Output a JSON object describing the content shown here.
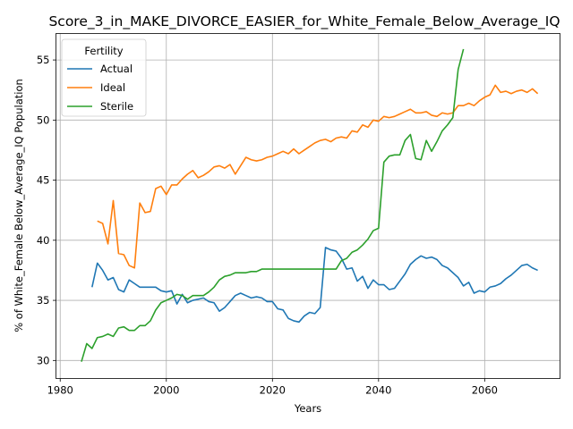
{
  "chart_data": {
    "type": "line",
    "title": "Score_3_in_MAKE_DIVORCE_EASIER_for_White_Female_Below_Average_IQ",
    "xlabel": "Years",
    "ylabel": "% of White_Female Below_Average_IQ Population",
    "xlim": [
      1979.2,
      1974.2
    ],
    "ylim": [
      28.5,
      57.2
    ],
    "x_ticks": [
      1980,
      2000,
      2020,
      2040,
      2060
    ],
    "y_ticks": [
      30,
      35,
      40,
      45,
      50,
      55
    ],
    "grid": true,
    "legend": {
      "title": "Fertility",
      "placement": "top-left"
    },
    "series": [
      {
        "name": "Actual",
        "color": "#1f77b4",
        "points": [
          [
            1986,
            36.1
          ],
          [
            1987,
            38.1
          ],
          [
            1988,
            37.5
          ],
          [
            1989,
            36.7
          ],
          [
            1990,
            36.9
          ],
          [
            1991,
            35.9
          ],
          [
            1992,
            35.7
          ],
          [
            1993,
            36.7
          ],
          [
            1994,
            36.4
          ],
          [
            1995,
            36.1
          ],
          [
            1996,
            36.1
          ],
          [
            1997,
            36.1
          ],
          [
            1998,
            36.1
          ],
          [
            1999,
            35.8
          ],
          [
            2000,
            35.7
          ],
          [
            2001,
            35.8
          ],
          [
            2002,
            34.7
          ],
          [
            2003,
            35.5
          ],
          [
            2004,
            34.8
          ],
          [
            2005,
            35.0
          ],
          [
            2006,
            35.1
          ],
          [
            2007,
            35.2
          ],
          [
            2008,
            34.9
          ],
          [
            2009,
            34.8
          ],
          [
            2010,
            34.1
          ],
          [
            2011,
            34.4
          ],
          [
            2012,
            34.9
          ],
          [
            2013,
            35.4
          ],
          [
            2014,
            35.6
          ],
          [
            2015,
            35.4
          ],
          [
            2016,
            35.2
          ],
          [
            2017,
            35.3
          ],
          [
            2018,
            35.2
          ],
          [
            2019,
            34.9
          ],
          [
            2020,
            34.9
          ],
          [
            2021,
            34.3
          ],
          [
            2022,
            34.2
          ],
          [
            2023,
            33.5
          ],
          [
            2024,
            33.3
          ],
          [
            2025,
            33.2
          ],
          [
            2026,
            33.7
          ],
          [
            2027,
            34.0
          ],
          [
            2028,
            33.9
          ],
          [
            2029,
            34.4
          ],
          [
            2030,
            39.4
          ],
          [
            2031,
            39.2
          ],
          [
            2032,
            39.1
          ],
          [
            2033,
            38.5
          ],
          [
            2034,
            37.6
          ],
          [
            2035,
            37.7
          ],
          [
            2036,
            36.6
          ],
          [
            2037,
            37.0
          ],
          [
            2038,
            36.0
          ],
          [
            2039,
            36.7
          ],
          [
            2040,
            36.3
          ],
          [
            2041,
            36.3
          ],
          [
            2042,
            35.9
          ],
          [
            2043,
            36.0
          ],
          [
            2044,
            36.6
          ],
          [
            2045,
            37.2
          ],
          [
            2046,
            38.0
          ],
          [
            2047,
            38.4
          ],
          [
            2048,
            38.7
          ],
          [
            2049,
            38.5
          ],
          [
            2050,
            38.6
          ],
          [
            2051,
            38.4
          ],
          [
            2052,
            37.9
          ],
          [
            2053,
            37.7
          ],
          [
            2054,
            37.3
          ],
          [
            2055,
            36.9
          ],
          [
            2056,
            36.2
          ],
          [
            2057,
            36.5
          ],
          [
            2058,
            35.6
          ],
          [
            2059,
            35.8
          ],
          [
            2060,
            35.7
          ],
          [
            2061,
            36.1
          ],
          [
            2062,
            36.2
          ],
          [
            2063,
            36.4
          ],
          [
            2064,
            36.8
          ],
          [
            2065,
            37.1
          ],
          [
            2066,
            37.5
          ],
          [
            2067,
            37.9
          ],
          [
            2068,
            38.0
          ],
          [
            2069,
            37.7
          ],
          [
            2070,
            37.5
          ]
        ]
      },
      {
        "name": "Ideal",
        "color": "#ff7f0e",
        "points": [
          [
            1987,
            41.6
          ],
          [
            1988,
            41.4
          ],
          [
            1989,
            39.7
          ],
          [
            1990,
            43.3
          ],
          [
            1991,
            38.9
          ],
          [
            1992,
            38.8
          ],
          [
            1993,
            37.9
          ],
          [
            1994,
            37.7
          ],
          [
            1995,
            43.1
          ],
          [
            1996,
            42.3
          ],
          [
            1997,
            42.4
          ],
          [
            1998,
            44.3
          ],
          [
            1999,
            44.5
          ],
          [
            2000,
            43.8
          ],
          [
            2001,
            44.6
          ],
          [
            2002,
            44.6
          ],
          [
            2003,
            45.1
          ],
          [
            2004,
            45.5
          ],
          [
            2005,
            45.8
          ],
          [
            2006,
            45.2
          ],
          [
            2007,
            45.4
          ],
          [
            2008,
            45.7
          ],
          [
            2009,
            46.1
          ],
          [
            2010,
            46.2
          ],
          [
            2011,
            46.0
          ],
          [
            2012,
            46.3
          ],
          [
            2013,
            45.5
          ],
          [
            2014,
            46.2
          ],
          [
            2015,
            46.9
          ],
          [
            2016,
            46.7
          ],
          [
            2017,
            46.6
          ],
          [
            2018,
            46.7
          ],
          [
            2019,
            46.9
          ],
          [
            2020,
            47.0
          ],
          [
            2021,
            47.2
          ],
          [
            2022,
            47.4
          ],
          [
            2023,
            47.2
          ],
          [
            2024,
            47.6
          ],
          [
            2025,
            47.2
          ],
          [
            2026,
            47.5
          ],
          [
            2027,
            47.8
          ],
          [
            2028,
            48.1
          ],
          [
            2029,
            48.3
          ],
          [
            2030,
            48.4
          ],
          [
            2031,
            48.2
          ],
          [
            2032,
            48.5
          ],
          [
            2033,
            48.6
          ],
          [
            2034,
            48.5
          ],
          [
            2035,
            49.1
          ],
          [
            2036,
            49.0
          ],
          [
            2037,
            49.6
          ],
          [
            2038,
            49.4
          ],
          [
            2039,
            50.0
          ],
          [
            2040,
            49.9
          ],
          [
            2041,
            50.3
          ],
          [
            2042,
            50.2
          ],
          [
            2043,
            50.3
          ],
          [
            2044,
            50.5
          ],
          [
            2045,
            50.7
          ],
          [
            2046,
            50.9
          ],
          [
            2047,
            50.6
          ],
          [
            2048,
            50.6
          ],
          [
            2049,
            50.7
          ],
          [
            2050,
            50.4
          ],
          [
            2051,
            50.3
          ],
          [
            2052,
            50.6
          ],
          [
            2053,
            50.5
          ],
          [
            2054,
            50.6
          ],
          [
            2055,
            51.2
          ],
          [
            2056,
            51.2
          ],
          [
            2057,
            51.4
          ],
          [
            2058,
            51.2
          ],
          [
            2059,
            51.6
          ],
          [
            2060,
            51.9
          ],
          [
            2061,
            52.1
          ],
          [
            2062,
            52.9
          ],
          [
            2063,
            52.3
          ],
          [
            2064,
            52.4
          ],
          [
            2065,
            52.2
          ],
          [
            2066,
            52.4
          ],
          [
            2067,
            52.5
          ],
          [
            2068,
            52.3
          ],
          [
            2069,
            52.6
          ],
          [
            2070,
            52.2
          ]
        ]
      },
      {
        "name": "Sterile",
        "color": "#2ca02c",
        "points": [
          [
            1984,
            29.9
          ],
          [
            1985,
            31.4
          ],
          [
            1986,
            31.0
          ],
          [
            1987,
            31.9
          ],
          [
            1988,
            32.0
          ],
          [
            1989,
            32.2
          ],
          [
            1990,
            32.0
          ],
          [
            1991,
            32.7
          ],
          [
            1992,
            32.8
          ],
          [
            1993,
            32.5
          ],
          [
            1994,
            32.5
          ],
          [
            1995,
            32.9
          ],
          [
            1996,
            32.9
          ],
          [
            1997,
            33.3
          ],
          [
            1998,
            34.2
          ],
          [
            1999,
            34.8
          ],
          [
            2000,
            35.0
          ],
          [
            2001,
            35.2
          ],
          [
            2002,
            35.5
          ],
          [
            2003,
            35.4
          ],
          [
            2004,
            35.1
          ],
          [
            2005,
            35.4
          ],
          [
            2006,
            35.4
          ],
          [
            2007,
            35.4
          ],
          [
            2008,
            35.7
          ],
          [
            2009,
            36.1
          ],
          [
            2010,
            36.7
          ],
          [
            2011,
            37.0
          ],
          [
            2012,
            37.1
          ],
          [
            2013,
            37.3
          ],
          [
            2014,
            37.3
          ],
          [
            2015,
            37.3
          ],
          [
            2016,
            37.4
          ],
          [
            2017,
            37.4
          ],
          [
            2018,
            37.6
          ],
          [
            2019,
            37.6
          ],
          [
            2020,
            37.6
          ],
          [
            2021,
            37.6
          ],
          [
            2022,
            37.6
          ],
          [
            2023,
            37.6
          ],
          [
            2024,
            37.6
          ],
          [
            2025,
            37.6
          ],
          [
            2026,
            37.6
          ],
          [
            2027,
            37.6
          ],
          [
            2028,
            37.6
          ],
          [
            2029,
            37.6
          ],
          [
            2030,
            37.6
          ],
          [
            2031,
            37.6
          ],
          [
            2032,
            37.6
          ],
          [
            2033,
            38.3
          ],
          [
            2034,
            38.5
          ],
          [
            2035,
            39.0
          ],
          [
            2036,
            39.2
          ],
          [
            2037,
            39.6
          ],
          [
            2038,
            40.1
          ],
          [
            2039,
            40.8
          ],
          [
            2040,
            41.0
          ],
          [
            2041,
            46.5
          ],
          [
            2042,
            47.0
          ],
          [
            2043,
            47.1
          ],
          [
            2044,
            47.1
          ],
          [
            2045,
            48.3
          ],
          [
            2046,
            48.8
          ],
          [
            2047,
            46.8
          ],
          [
            2048,
            46.7
          ],
          [
            2049,
            48.3
          ],
          [
            2050,
            47.4
          ],
          [
            2051,
            48.2
          ],
          [
            2052,
            49.1
          ],
          [
            2053,
            49.6
          ],
          [
            2054,
            50.2
          ],
          [
            2055,
            54.2
          ],
          [
            2056,
            55.9
          ]
        ]
      }
    ]
  }
}
